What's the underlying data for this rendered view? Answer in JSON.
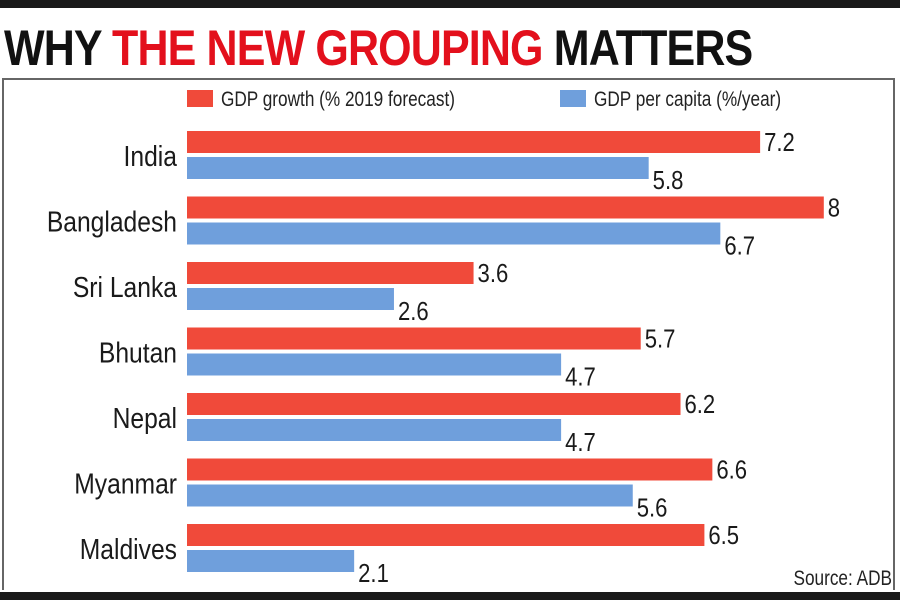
{
  "title": {
    "part1": "WHY ",
    "part2": "THE NEW GROUPING",
    "part3": " MATTERS"
  },
  "source": "Source: ADB",
  "chart_data": {
    "type": "bar",
    "orientation": "horizontal",
    "categories": [
      "India",
      "Bangladesh",
      "Sri Lanka",
      "Bhutan",
      "Nepal",
      "Myanmar",
      "Maldives"
    ],
    "series": [
      {
        "name": "GDP growth (% 2019 forecast)",
        "color": "#f04a3a",
        "values": [
          7.2,
          8,
          3.6,
          5.7,
          6.2,
          6.6,
          6.5
        ]
      },
      {
        "name": "GDP per capita (%/year)",
        "color": "#6f9fdc",
        "values": [
          5.8,
          6.7,
          2.6,
          4.7,
          4.7,
          5.6,
          2.1
        ]
      }
    ],
    "legend": "top",
    "grid": false,
    "xlim": [
      0,
      8.5
    ]
  }
}
